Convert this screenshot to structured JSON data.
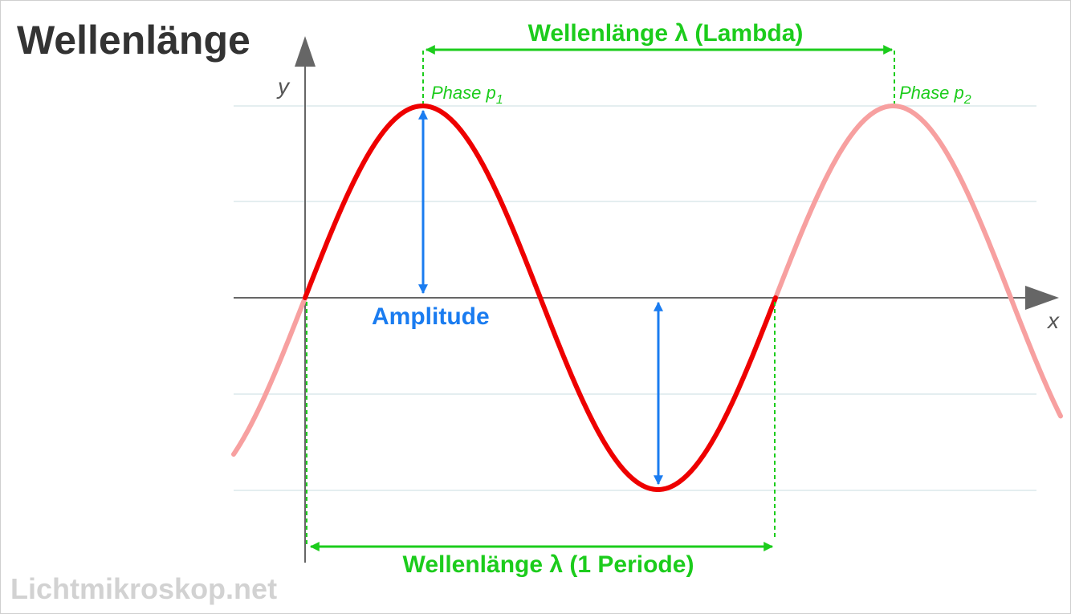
{
  "title": "Wellenlänge",
  "axes": {
    "y_label": "y",
    "x_label": "x"
  },
  "labels": {
    "wavelength_lambda": "Wellenlänge λ (Lambda)",
    "wavelength_period": "Wellenlänge λ (1 Periode)",
    "amplitude": "Amplitude",
    "phase_1": {
      "text": "Phase p",
      "sub": "1"
    },
    "phase_2": {
      "text": "Phase p",
      "sub": "2"
    }
  },
  "watermark": "Lichtmikroskop.net",
  "colors": {
    "wave_main": "#ee0000",
    "wave_faded": "#f7a0a0",
    "green": "#1ccc1c",
    "blue": "#1a7cf0",
    "axis": "#666666",
    "grid": "#dbe9ec"
  }
}
